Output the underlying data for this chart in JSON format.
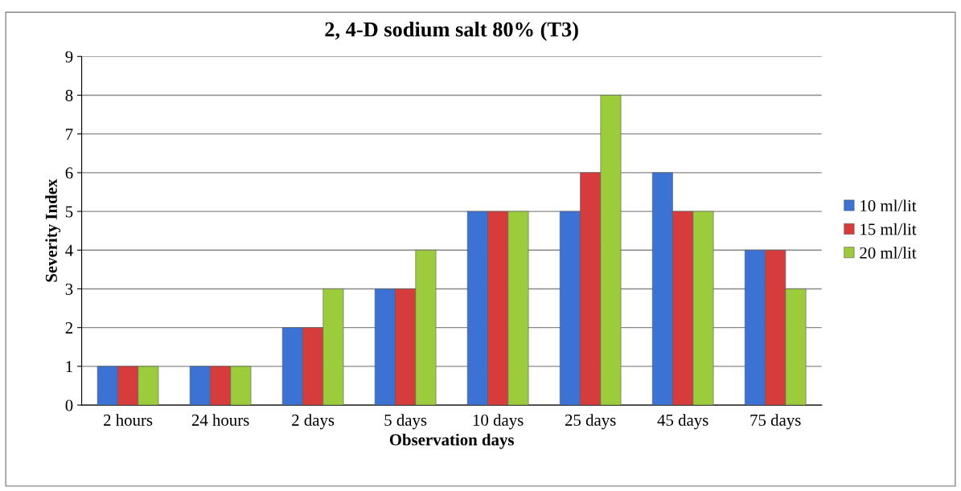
{
  "chart_data": {
    "type": "bar",
    "title": "2, 4-D sodium salt 80% (T3)",
    "xlabel": "Observation days",
    "ylabel": "Severity Index",
    "categories": [
      "2 hours",
      "24 hours",
      "2 days",
      "5 days",
      "10 days",
      "25 days",
      "45 days",
      "75 days"
    ],
    "series": [
      {
        "name": "10 ml/lit",
        "color": "#3c72d4",
        "values": [
          1,
          1,
          2,
          3,
          5,
          5,
          6,
          4
        ]
      },
      {
        "name": "15 ml/lit",
        "color": "#d63c3c",
        "values": [
          1,
          1,
          2,
          3,
          5,
          6,
          5,
          4
        ]
      },
      {
        "name": "20 ml/lit",
        "color": "#9ccc3c",
        "values": [
          1,
          1,
          3,
          4,
          5,
          8,
          5,
          3
        ]
      }
    ],
    "ylim": [
      0,
      9
    ],
    "yticks": [
      0,
      1,
      2,
      3,
      4,
      5,
      6,
      7,
      8,
      9
    ],
    "grid": "y",
    "legend": "right"
  }
}
